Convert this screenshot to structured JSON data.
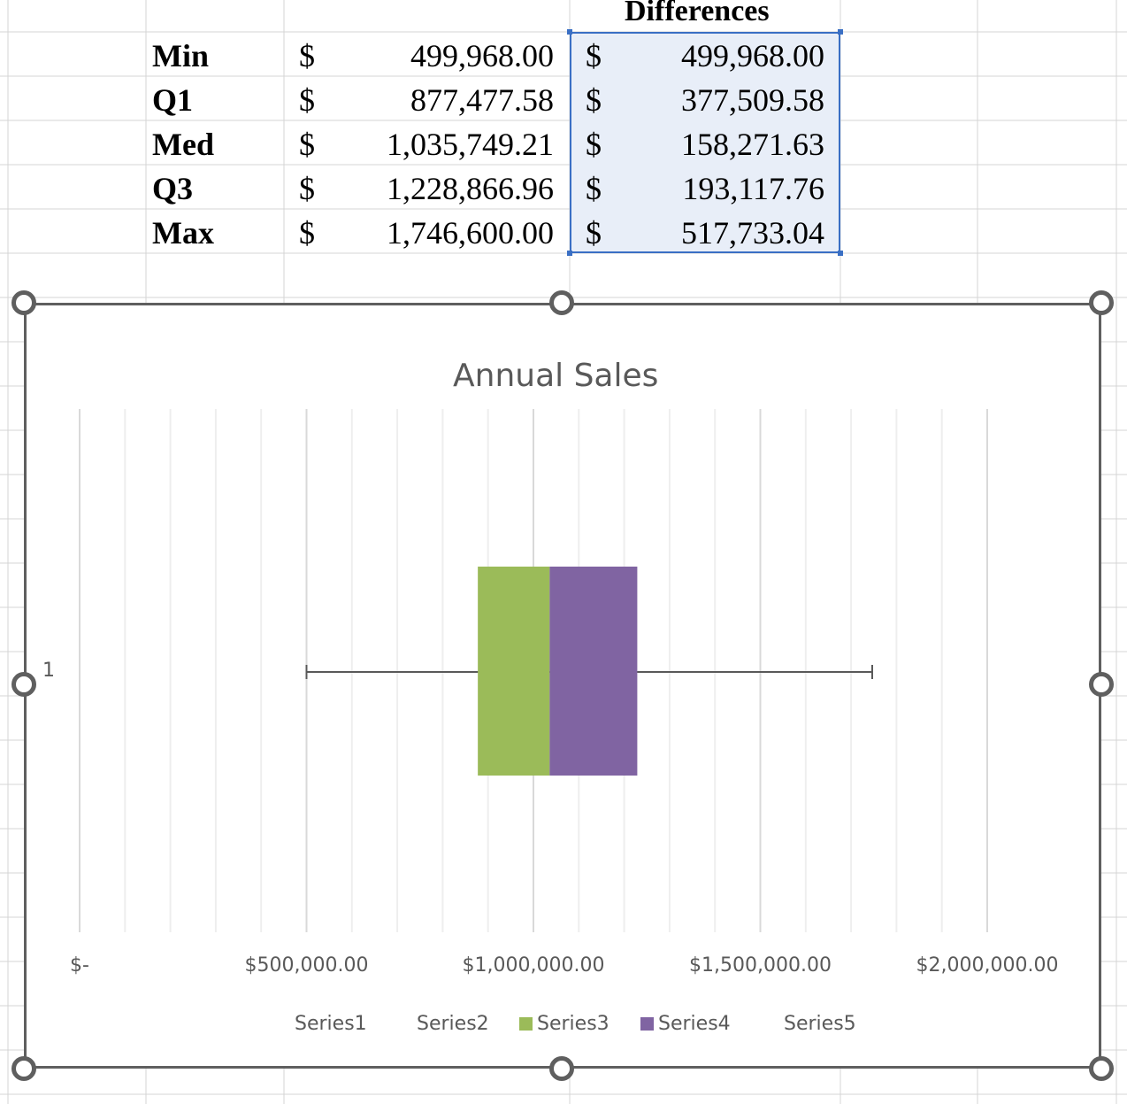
{
  "sheet": {
    "header": "Differences",
    "rows": [
      {
        "label": "Min",
        "cur1": "$",
        "value": "499,968.00",
        "cur2": "$",
        "diff": "499,968.00"
      },
      {
        "label": "Q1",
        "cur1": "$",
        "value": "877,477.58",
        "cur2": "$",
        "diff": "377,509.58"
      },
      {
        "label": "Med",
        "cur1": "$",
        "value": "1,035,749.21",
        "cur2": "$",
        "diff": "158,271.63"
      },
      {
        "label": "Q3",
        "cur1": "$",
        "value": "1,228,866.96",
        "cur2": "$",
        "diff": "193,117.76"
      },
      {
        "label": "Max",
        "cur1": "$",
        "value": "1,746,600.00",
        "cur2": "$",
        "diff": "517,733.04"
      }
    ],
    "selection_color": "#3a6fc4"
  },
  "chart_data": {
    "type": "bar",
    "subtype": "stacked-horizontal-box-plot",
    "title": "Annual Sales",
    "categories": [
      "1"
    ],
    "series": [
      {
        "name": "Series1",
        "values": [
          499968.0
        ],
        "color": "none"
      },
      {
        "name": "Series2",
        "values": [
          377509.58
        ],
        "color": "none"
      },
      {
        "name": "Series3",
        "values": [
          158271.63
        ],
        "color": "#9bbb59"
      },
      {
        "name": "Series4",
        "values": [
          193117.76
        ],
        "color": "#8064a2"
      },
      {
        "name": "Series5",
        "values": [
          517733.04
        ],
        "color": "none"
      }
    ],
    "whisker": {
      "min": 499968.0,
      "max": 1746600.0,
      "color": "#595959"
    },
    "xlim": [
      0,
      2000000
    ],
    "major_step": 500000,
    "minor_step": 100000,
    "xticks": [
      "$-",
      "$500,000.00",
      "$1,000,000.00",
      "$1,500,000.00",
      "$2,000,000.00"
    ],
    "ytick": "1",
    "grid": true,
    "legend": "bottom",
    "xlabel": "",
    "ylabel": ""
  }
}
